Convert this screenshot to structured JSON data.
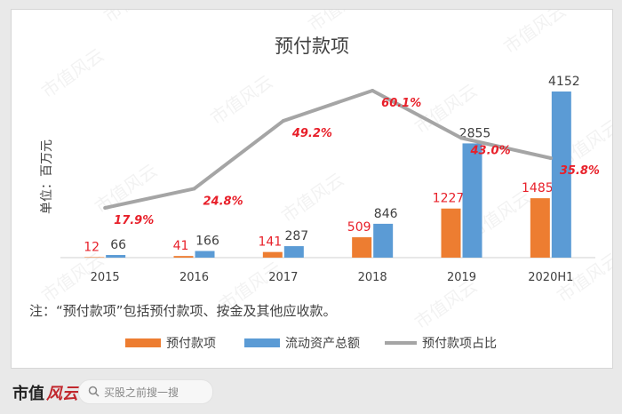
{
  "chart_data": {
    "type": "bar",
    "title": "预付款项",
    "ylabel": "单位：百万元",
    "categories": [
      "2015",
      "2016",
      "2017",
      "2018",
      "2019",
      "2020H1"
    ],
    "series": [
      {
        "name": "预付款项",
        "type": "bar",
        "color": "#ed7d31",
        "values": [
          12,
          41,
          141,
          509,
          1227,
          1485
        ]
      },
      {
        "name": "流动资产总额",
        "type": "bar",
        "color": "#5b9bd5",
        "values": [
          66,
          166,
          287,
          846,
          2855,
          4152
        ]
      },
      {
        "name": "预付款项占比",
        "type": "line",
        "color": "#a5a5a5",
        "values": [
          17.9,
          24.8,
          49.2,
          60.1,
          43.0,
          35.8
        ],
        "labels": [
          "17.9%",
          "24.8%",
          "49.2%",
          "60.1%",
          "43.0%",
          "35.8%"
        ]
      }
    ],
    "ylim": [
      0,
      4152
    ],
    "line_ylim": [
      0,
      70
    ],
    "legend_position": "bottom",
    "note": "注：“预付款项”包括预付款项、按金及其他应收款。",
    "watermark": "市值风云"
  },
  "footer": {
    "brand": "市值",
    "brand_script": "风云",
    "search_placeholder": "买股之前搜一搜"
  }
}
